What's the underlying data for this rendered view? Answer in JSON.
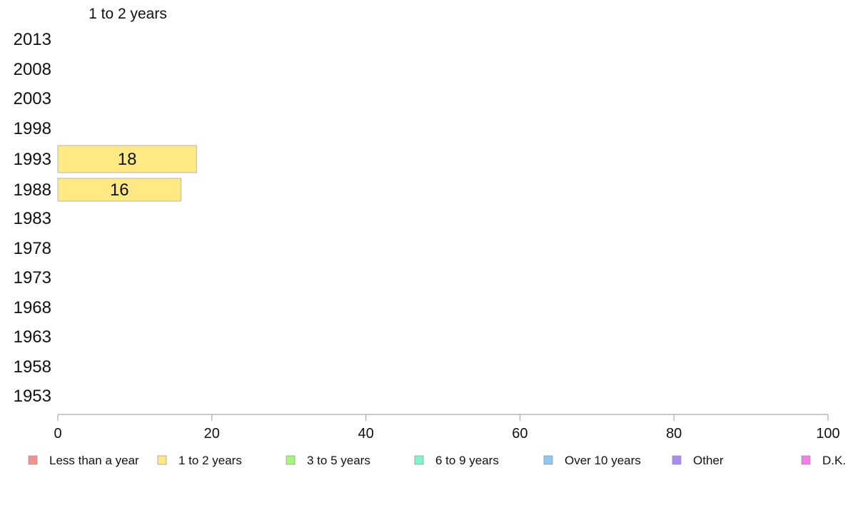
{
  "chart_data": {
    "type": "bar",
    "orientation": "horizontal",
    "title": "1 to 2 years",
    "categories": [
      "2013",
      "2008",
      "2003",
      "1998",
      "1993",
      "1988",
      "1983",
      "1978",
      "1973",
      "1968",
      "1963",
      "1958",
      "1953"
    ],
    "series": [
      {
        "name": "1 to 2 years",
        "color": "#ffe985",
        "values": [
          null,
          null,
          null,
          null,
          18,
          16,
          null,
          null,
          null,
          null,
          null,
          null,
          null
        ]
      }
    ],
    "xlim": [
      0,
      100
    ],
    "xticks": [
      0,
      20,
      40,
      60,
      80,
      100
    ],
    "grid": false,
    "legend": {
      "position": "bottom",
      "items": [
        {
          "label": "Less than a year",
          "color": "#f59191"
        },
        {
          "label": "1 to 2 years",
          "color": "#ffe985"
        },
        {
          "label": "3 to 5 years",
          "color": "#a5f57e"
        },
        {
          "label": "6 to 9 years",
          "color": "#7ef5c9"
        },
        {
          "label": "Over 10 years",
          "color": "#8ec8f2"
        },
        {
          "label": "Other",
          "color": "#a98cf2"
        },
        {
          "label": "D.K.",
          "color": "#f57ee6"
        }
      ]
    }
  }
}
